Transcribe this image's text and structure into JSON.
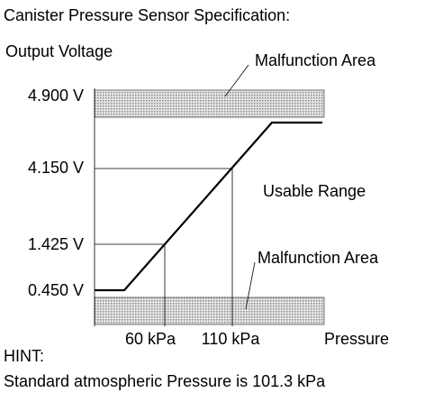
{
  "title": "Canister Pressure Sensor Specification:",
  "y_axis_label": "Output Voltage",
  "x_axis_label": "Pressure",
  "y_labels": [
    "4.900 V",
    "4.150 V",
    "1.425 V",
    "0.450 V"
  ],
  "x_labels": [
    "60 kPa",
    "110 kPa"
  ],
  "areas": {
    "malfunction_top": "Malfunction Area",
    "usable": "Usable Range",
    "malfunction_bottom": "Malfunction Area"
  },
  "hint": {
    "title": "HINT:",
    "text": "Standard atmospheric Pressure is 101.3 kPa"
  }
}
